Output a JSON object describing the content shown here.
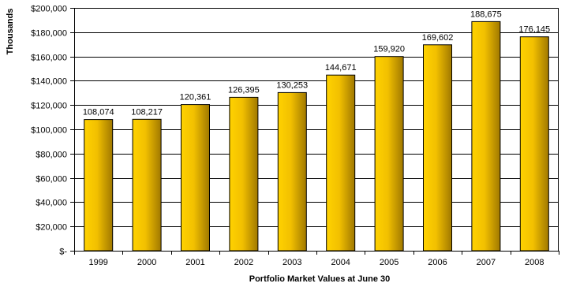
{
  "chart_data": {
    "type": "bar",
    "title": "",
    "xlabel": "Portfolio Market Values at June 30",
    "ylabel": "Thousands",
    "categories": [
      "1999",
      "2000",
      "2001",
      "2002",
      "2003",
      "2004",
      "2005",
      "2006",
      "2007",
      "2008"
    ],
    "values": [
      108074,
      108217,
      120361,
      126395,
      130253,
      144671,
      159920,
      169602,
      188675,
      176145
    ],
    "data_labels": [
      "108,074",
      "108,217",
      "120,361",
      "126,395",
      "130,253",
      "144,671",
      "159,920",
      "169,602",
      "188,675",
      "176,145"
    ],
    "ylim": [
      0,
      200000
    ],
    "yticks": [
      0,
      20000,
      40000,
      60000,
      80000,
      100000,
      120000,
      140000,
      160000,
      180000,
      200000
    ],
    "ytick_labels": [
      "$-",
      "$20,000",
      "$40,000",
      "$60,000",
      "$80,000",
      "$100,000",
      "$120,000",
      "$140,000",
      "$160,000",
      "$180,000",
      "$200,000"
    ],
    "grid": true,
    "legend": "none",
    "colors": {
      "bar_light": "#ffd200",
      "bar_dark": "#a07800",
      "bar_stroke": "#000000",
      "grid": "#000000"
    }
  }
}
